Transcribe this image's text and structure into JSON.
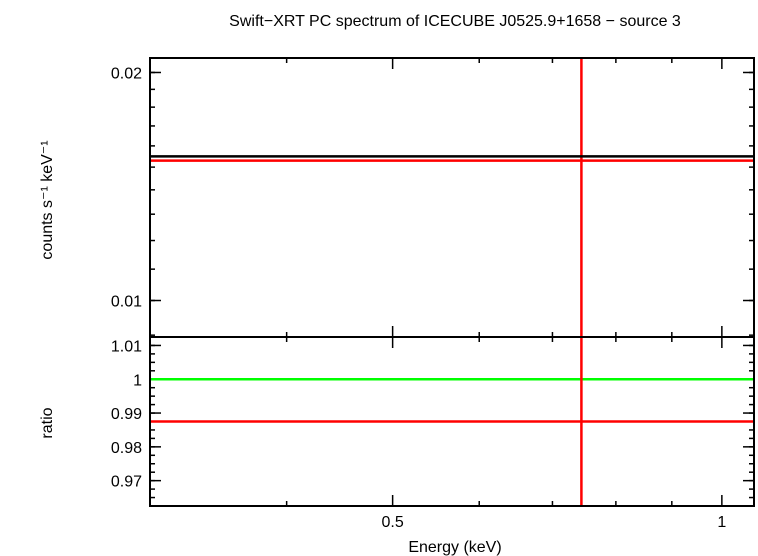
{
  "chart_data": {
    "type": "line",
    "title": "Swift−XRT PC spectrum of ICECUBE J0525.9+1658 − source 3",
    "xlabel": "Energy (keV)",
    "xscale": "log",
    "xlim": [
      0.3,
      1.07
    ],
    "x_ticks": [
      {
        "value": 0.5,
        "label": "0.5"
      },
      {
        "value": 1,
        "label": "1"
      }
    ],
    "panels": [
      {
        "name": "spectrum",
        "ylabel": "counts s⁻¹ keV⁻¹",
        "yscale": "log",
        "ylim": [
          0.00895,
          0.0209
        ],
        "y_ticks": [
          {
            "value": 0.01,
            "label": "0.01"
          },
          {
            "value": 0.02,
            "label": "0.02"
          }
        ],
        "series": [
          {
            "name": "data",
            "color": "#ff0000",
            "x_range": [
              0.3,
              1.07
            ],
            "y": 0.0153,
            "error_x": 0.744,
            "error_y": [
              0.00895,
              0.0209
            ]
          },
          {
            "name": "model",
            "color": "#000000",
            "x_range": [
              0.3,
              1.07
            ],
            "y": 0.0155
          }
        ]
      },
      {
        "name": "ratio",
        "ylabel": "ratio",
        "yscale": "linear",
        "ylim": [
          0.9625,
          1.0125
        ],
        "y_ticks": [
          {
            "value": 1.01,
            "label": "1.01"
          },
          {
            "value": 1.0,
            "label": "1"
          },
          {
            "value": 0.99,
            "label": "0.99"
          },
          {
            "value": 0.98,
            "label": "0.98"
          },
          {
            "value": 0.97,
            "label": "0.97"
          }
        ],
        "series": [
          {
            "name": "unity",
            "color": "#00ff00",
            "x_range": [
              0.3,
              1.07
            ],
            "y": 1.0
          },
          {
            "name": "data ratio",
            "color": "#ff0000",
            "x_range": [
              0.3,
              1.07
            ],
            "y": 0.9875,
            "error_x": 0.744,
            "error_y": [
              0.9625,
              1.0125
            ]
          }
        ]
      }
    ]
  }
}
